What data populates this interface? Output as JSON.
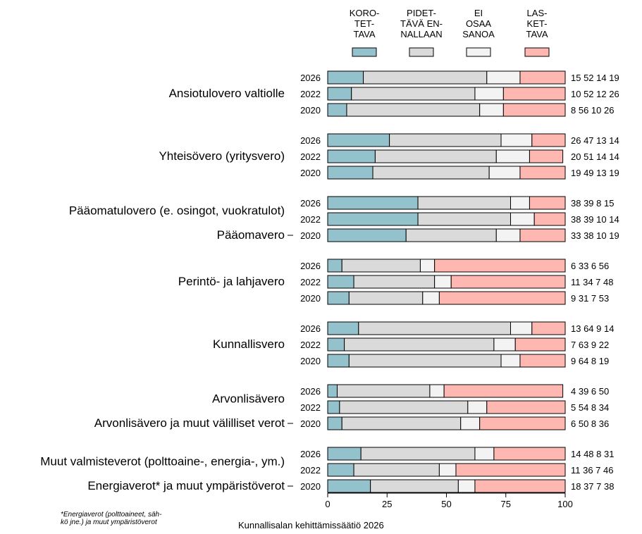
{
  "chart_data": {
    "type": "bar",
    "stacked": true,
    "orientation": "horizontal",
    "legend_position": "top",
    "series": [
      {
        "name": "KORO-\nTET-\nTAVA",
        "color": "#93c1cc"
      },
      {
        "name": "PIDET-\nTÄVÄ EN-\nNALLAAN",
        "color": "#dadada"
      },
      {
        "name": "EI\nOSAA\nSANOA",
        "color": "#f3f3f3"
      },
      {
        "name": "LAS-\nKET-\nTAVA",
        "color": "#ffb7b1"
      }
    ],
    "groups": [
      {
        "labels": [
          {
            "text": "Ansiotulovero valtiolle"
          }
        ],
        "rows": [
          {
            "year": "2026",
            "values": [
              15,
              52,
              14,
              19
            ]
          },
          {
            "year": "2022",
            "values": [
              10,
              52,
              12,
              26
            ]
          },
          {
            "year": "2020",
            "values": [
              8,
              56,
              10,
              26
            ]
          }
        ]
      },
      {
        "labels": [
          {
            "text": "Yhteisövero (yritysvero)"
          }
        ],
        "rows": [
          {
            "year": "2026",
            "values": [
              26,
              47,
              13,
              14
            ]
          },
          {
            "year": "2022",
            "values": [
              20,
              51,
              14,
              14
            ]
          },
          {
            "year": "2020",
            "values": [
              19,
              49,
              13,
              19
            ]
          }
        ]
      },
      {
        "labels": [
          {
            "text": "Pääomatulovero (e. osingot, vuokratulot)"
          },
          {
            "text": "Pääomavero",
            "tick": true
          }
        ],
        "rows": [
          {
            "year": "2026",
            "values": [
              38,
              39,
              8,
              15
            ]
          },
          {
            "year": "2022",
            "values": [
              38,
              39,
              10,
              14
            ]
          },
          {
            "year": "2020",
            "values": [
              33,
              38,
              10,
              19
            ]
          }
        ]
      },
      {
        "labels": [
          {
            "text": "Perintö- ja lahjavero"
          }
        ],
        "rows": [
          {
            "year": "2026",
            "values": [
              6,
              33,
              6,
              56
            ]
          },
          {
            "year": "2022",
            "values": [
              11,
              34,
              7,
              48
            ]
          },
          {
            "year": "2020",
            "values": [
              9,
              31,
              7,
              53
            ]
          }
        ]
      },
      {
        "labels": [
          {
            "text": "Kunnallisvero"
          }
        ],
        "rows": [
          {
            "year": "2026",
            "values": [
              13,
              64,
              9,
              14
            ]
          },
          {
            "year": "2022",
            "values": [
              7,
              63,
              9,
              22
            ]
          },
          {
            "year": "2020",
            "values": [
              9,
              64,
              8,
              19
            ]
          }
        ]
      },
      {
        "labels": [
          {
            "text": "Arvonlisävero"
          },
          {
            "text": "Arvonlisävero ja muut välilliset verot",
            "tick": true
          }
        ],
        "rows": [
          {
            "year": "2026",
            "values": [
              4,
              39,
              6,
              50
            ]
          },
          {
            "year": "2022",
            "values": [
              5,
              54,
              8,
              34
            ]
          },
          {
            "year": "2020",
            "values": [
              6,
              50,
              8,
              36
            ]
          }
        ]
      },
      {
        "labels": [
          {
            "text": "Muut valmisteverot (polttoaine-, energia-, ym.)"
          },
          {
            "text": "Energiaverot* ja muut ympäristöverot",
            "tick": true
          }
        ],
        "rows": [
          {
            "year": "2026",
            "values": [
              14,
              48,
              8,
              31
            ]
          },
          {
            "year": "2022",
            "values": [
              11,
              36,
              7,
              46
            ]
          },
          {
            "year": "2020",
            "values": [
              18,
              37,
              7,
              38
            ]
          }
        ]
      }
    ],
    "x_ticks": [
      0,
      25,
      50,
      75,
      100
    ],
    "xlim": [
      0,
      100
    ],
    "grid": false
  },
  "footnote": "*Energiaverot (polttoaineet, säh-\nkö jne.) ja muut ympäristöverot",
  "credit": "Kunnallisalan kehittämissäätiö 2026"
}
